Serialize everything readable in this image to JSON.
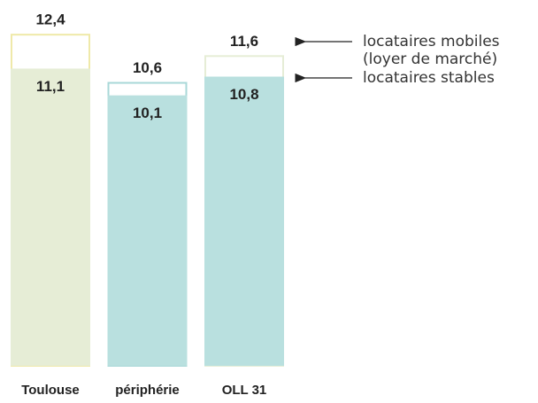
{
  "chart_data": {
    "type": "overlap_bar",
    "categories": [
      "Toulouse",
      "périphérie",
      "OLL 31"
    ],
    "series": [
      {
        "name": "locataires mobiles (loyer de marché)",
        "colors": [
          "#efe9a9",
          "#a9d8d8",
          "#e6edd6"
        ],
        "values": [
          12.4,
          10.6,
          11.6
        ],
        "value_labels": [
          "12,4",
          "10,6",
          "11,6"
        ]
      },
      {
        "name": "locataires stables",
        "colors": [
          "#e6edd6",
          "#b9e0df",
          "#b9e0df"
        ],
        "values": [
          11.1,
          10.1,
          10.8
        ],
        "value_labels": [
          "11,1",
          "10,1",
          "10,8"
        ]
      }
    ],
    "ylim": [
      0,
      13
    ]
  }
}
